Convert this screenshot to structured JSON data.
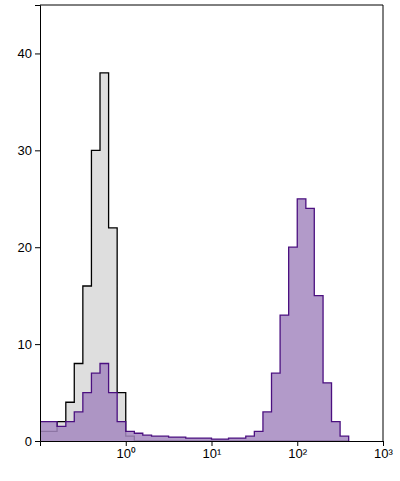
{
  "chart_data": {
    "type": "area",
    "log": "x",
    "grid": false,
    "x": [
      0.1,
      0.126,
      0.158,
      0.2,
      0.251,
      0.316,
      0.398,
      0.501,
      0.631,
      0.794,
      1,
      1.26,
      1.58,
      2,
      2.51,
      3.16,
      3.98,
      5.01,
      6.31,
      7.94,
      10,
      12.6,
      15.8,
      20,
      25.1,
      31.6,
      39.8,
      50.1,
      63.1,
      79.4,
      100,
      126,
      158,
      200,
      251,
      316,
      398
    ],
    "series": [
      {
        "color": "#000000",
        "values": [
          1,
          1,
          2,
          4,
          8,
          16,
          30,
          38,
          22,
          5,
          0.5,
          0,
          0,
          0,
          0,
          0,
          0,
          0,
          0,
          0,
          0,
          0,
          0,
          0,
          0,
          0,
          0,
          0,
          0,
          0,
          0,
          0,
          0,
          0,
          0,
          0,
          0
        ]
      },
      {
        "color": "#4b1080",
        "values": [
          2,
          2,
          1.5,
          2,
          3,
          5,
          7,
          8,
          5,
          2,
          1,
          0.8,
          0.6,
          0.5,
          0.5,
          0.4,
          0.4,
          0.3,
          0.3,
          0.3,
          0.2,
          0.2,
          0.3,
          0.3,
          0.5,
          1,
          3,
          7,
          13,
          20,
          25,
          24,
          15,
          6,
          2,
          0.5,
          0
        ]
      }
    ],
    "xlim": [
      0.1,
      1000
    ],
    "xticks": [
      {
        "value": 1,
        "label": "10⁰"
      },
      {
        "value": 10,
        "label": "10¹"
      },
      {
        "value": 100,
        "label": "10²"
      },
      {
        "value": 1000,
        "label": "10³"
      }
    ],
    "ylim": [
      0,
      45
    ],
    "yticks": [
      0,
      10,
      20,
      30,
      40
    ]
  }
}
